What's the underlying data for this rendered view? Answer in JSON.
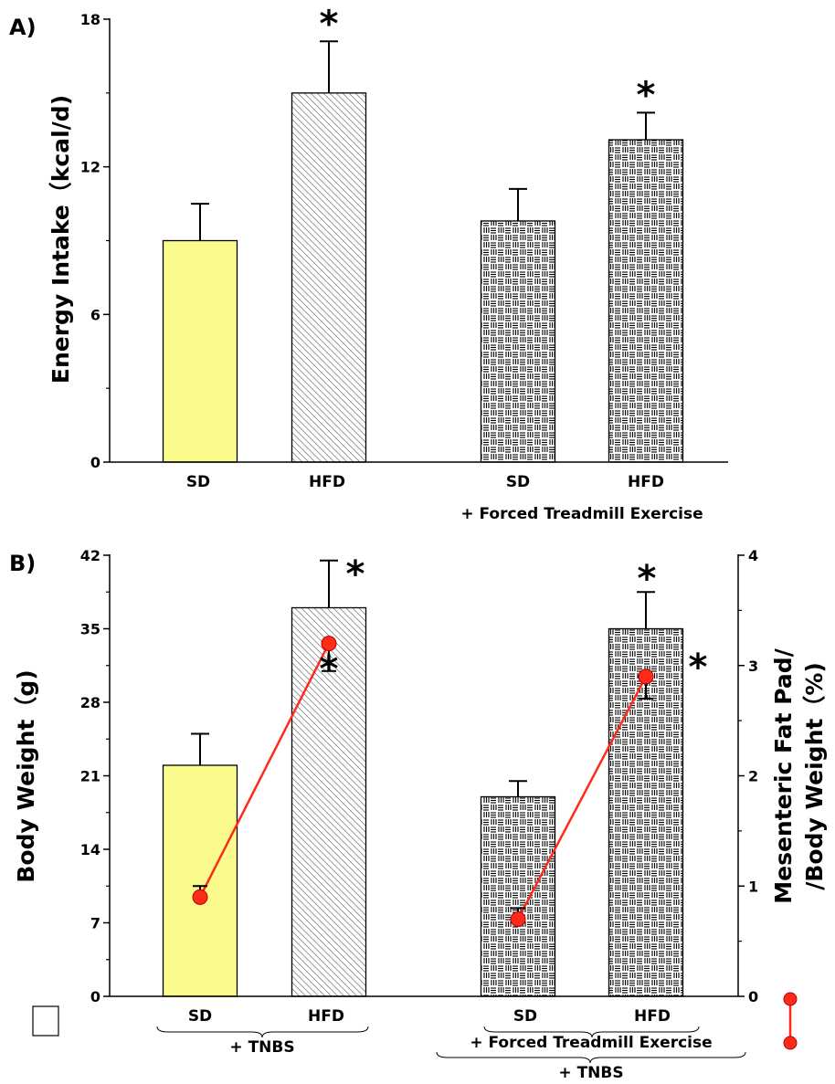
{
  "chart_data": [
    {
      "panel_label": "A)",
      "type": "bar",
      "ylabel": "Energy Intake（kcal/d)",
      "ylim": [
        0,
        18
      ],
      "yticks": [
        "0",
        "6",
        "12",
        "18"
      ],
      "categories": [
        "SD",
        "HFD",
        "SD",
        "HFD"
      ],
      "group_label": "+ Forced Treadmill Exercise",
      "values": [
        9.0,
        15.0,
        9.8,
        13.1
      ],
      "errors": [
        1.5,
        2.1,
        1.3,
        1.1
      ],
      "significance": [
        "",
        "*",
        "",
        "*"
      ],
      "fills": [
        "yellow",
        "diagonal-hatch",
        "dash-grid",
        "dash-grid"
      ]
    },
    {
      "panel_label": "B)",
      "type": "bar",
      "ylabel": "Body Weight（g)",
      "ylim": [
        0,
        42
      ],
      "yticks": [
        "0",
        "7",
        "14",
        "21",
        "28",
        "35",
        "42"
      ],
      "categories": [
        "SD",
        "HFD",
        "SD",
        "HFD"
      ],
      "group_labels": [
        "+ TNBS",
        "+ Forced Treadmill Exercise",
        "+ TNBS"
      ],
      "values": [
        22.0,
        37.0,
        19.0,
        35.0
      ],
      "errors": [
        3.0,
        4.5,
        1.5,
        3.5
      ],
      "significance": [
        "",
        "*",
        "",
        "*"
      ],
      "fills": [
        "yellow",
        "diagonal-hatch",
        "dash-grid",
        "dash-grid"
      ],
      "y2label": "Mesenteric Fat Pad/ /Body Weight（%)",
      "y2label_lines": [
        "Mesenteric Fat Pad/",
        "/Body Weight（%)"
      ],
      "y2lim": [
        0,
        4
      ],
      "y2ticks": [
        "0",
        "1",
        "2",
        "3",
        "4"
      ],
      "line_series": {
        "values": [
          0.9,
          3.2,
          0.7,
          2.9
        ],
        "errors": [
          0.1,
          0.25,
          0.1,
          0.2
        ],
        "significance": [
          "",
          "*",
          "",
          "*"
        ],
        "color": "#ff2a1a"
      }
    }
  ],
  "colors": {
    "yellow_bar": "#fbfa8c",
    "red_line": "#ff2a1a"
  }
}
